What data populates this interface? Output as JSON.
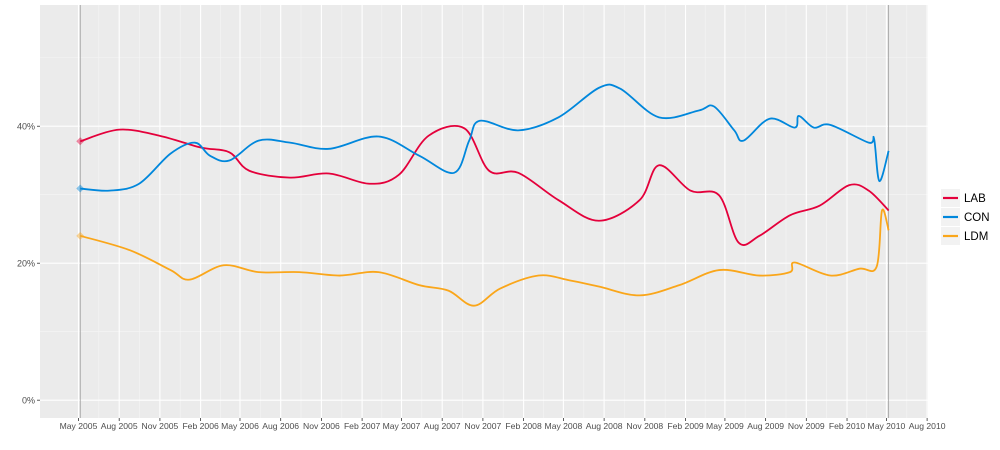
{
  "chart_data": {
    "type": "line",
    "title": "",
    "xlabel": "",
    "ylabel": "",
    "xlim": [
      "2005-02-03",
      "2010-08-03"
    ],
    "ylim": [
      -2.6,
      57.7
    ],
    "grid": true,
    "legend_position": "right",
    "x_ticks": [
      "May 2005",
      "Aug 2005",
      "Nov 2005",
      "Feb 2006",
      "May 2006",
      "Aug 2006",
      "Nov 2006",
      "Feb 2007",
      "May 2007",
      "Aug 2007",
      "Nov 2007",
      "Feb 2008",
      "May 2008",
      "Aug 2008",
      "Nov 2008",
      "Feb 2009",
      "May 2009",
      "Aug 2009",
      "Nov 2009",
      "Feb 2010",
      "May 2010",
      "Aug 2010"
    ],
    "x_tick_dates": [
      "2005-05-01",
      "2005-08-01",
      "2005-11-01",
      "2006-02-01",
      "2006-05-01",
      "2006-08-01",
      "2006-11-01",
      "2007-02-01",
      "2007-05-01",
      "2007-08-01",
      "2007-11-01",
      "2008-02-01",
      "2008-05-01",
      "2008-08-01",
      "2008-11-01",
      "2009-02-01",
      "2009-05-01",
      "2009-08-01",
      "2009-11-01",
      "2010-02-01",
      "2010-05-01",
      "2010-08-01"
    ],
    "y_ticks": [
      0,
      20,
      40
    ],
    "y_tick_labels": [
      "0%",
      "20%",
      "40%"
    ],
    "reference_lines": [
      "2005-05-05",
      "2010-05-06"
    ],
    "series": [
      {
        "name": "LAB",
        "color": "#E4003B",
        "points": [
          [
            "2005-05-05",
            37.8
          ],
          [
            "2005-08-01",
            39.5
          ],
          [
            "2005-11-01",
            38.6
          ],
          [
            "2006-02-01",
            36.9
          ],
          [
            "2006-04-07",
            36.2
          ],
          [
            "2006-05-22",
            33.5
          ],
          [
            "2006-08-22",
            32.5
          ],
          [
            "2006-11-18",
            33.1
          ],
          [
            "2007-02-18",
            31.6
          ],
          [
            "2007-04-25",
            32.9
          ],
          [
            "2007-07-01",
            38.6
          ],
          [
            "2007-09-20",
            39.7
          ],
          [
            "2007-11-15",
            33.5
          ],
          [
            "2008-01-20",
            33.2
          ],
          [
            "2008-04-20",
            29.2
          ],
          [
            "2008-07-20",
            26.2
          ],
          [
            "2008-10-20",
            29.2
          ],
          [
            "2008-12-03",
            34.3
          ],
          [
            "2009-02-12",
            30.6
          ],
          [
            "2009-04-18",
            29.9
          ],
          [
            "2009-06-01",
            23.0
          ],
          [
            "2009-07-18",
            24.0
          ],
          [
            "2009-09-25",
            27.0
          ],
          [
            "2009-12-01",
            28.4
          ],
          [
            "2010-02-06",
            31.4
          ],
          [
            "2010-03-22",
            30.6
          ],
          [
            "2010-05-06",
            27.7
          ]
        ]
      },
      {
        "name": "CON",
        "color": "#0087DC",
        "points": [
          [
            "2005-05-05",
            30.9
          ],
          [
            "2005-07-10",
            30.6
          ],
          [
            "2005-09-15",
            31.6
          ],
          [
            "2005-11-25",
            36.0
          ],
          [
            "2006-01-19",
            37.6
          ],
          [
            "2006-02-22",
            35.7
          ],
          [
            "2006-04-07",
            35.0
          ],
          [
            "2006-06-12",
            37.9
          ],
          [
            "2006-08-22",
            37.6
          ],
          [
            "2006-11-18",
            36.7
          ],
          [
            "2007-03-10",
            38.5
          ],
          [
            "2007-06-10",
            35.7
          ],
          [
            "2007-08-28",
            33.2
          ],
          [
            "2007-10-01",
            37.9
          ],
          [
            "2007-10-25",
            40.8
          ],
          [
            "2008-01-20",
            39.4
          ],
          [
            "2008-04-20",
            41.3
          ],
          [
            "2008-07-20",
            45.6
          ],
          [
            "2008-09-06",
            45.5
          ],
          [
            "2008-12-03",
            41.3
          ],
          [
            "2009-03-03",
            42.3
          ],
          [
            "2009-04-06",
            42.9
          ],
          [
            "2009-05-22",
            39.4
          ],
          [
            "2009-06-12",
            37.9
          ],
          [
            "2009-08-10",
            41.1
          ],
          [
            "2009-10-06",
            39.8
          ],
          [
            "2009-10-15",
            41.5
          ],
          [
            "2009-11-18",
            39.8
          ],
          [
            "2009-12-25",
            40.2
          ],
          [
            "2010-03-22",
            37.6
          ],
          [
            "2010-04-03",
            38.2
          ],
          [
            "2010-04-15",
            32.0
          ],
          [
            "2010-05-06",
            36.4
          ]
        ]
      },
      {
        "name": "LDM",
        "color": "#FAA61A",
        "points": [
          [
            "2005-05-05",
            24.0
          ],
          [
            "2005-08-25",
            21.9
          ],
          [
            "2005-11-25",
            19.0
          ],
          [
            "2006-01-07",
            17.6
          ],
          [
            "2006-03-25",
            19.7
          ],
          [
            "2006-06-12",
            18.7
          ],
          [
            "2006-09-12",
            18.7
          ],
          [
            "2006-12-12",
            18.2
          ],
          [
            "2007-03-10",
            18.7
          ],
          [
            "2007-06-10",
            16.8
          ],
          [
            "2007-08-15",
            16.0
          ],
          [
            "2007-10-12",
            13.8
          ],
          [
            "2007-12-10",
            16.3
          ],
          [
            "2008-03-06",
            18.2
          ],
          [
            "2008-05-15",
            17.5
          ],
          [
            "2008-07-20",
            16.6
          ],
          [
            "2008-10-20",
            15.3
          ],
          [
            "2009-01-18",
            16.8
          ],
          [
            "2009-04-18",
            19.0
          ],
          [
            "2009-07-18",
            18.2
          ],
          [
            "2009-09-25",
            18.7
          ],
          [
            "2009-10-06",
            20.1
          ],
          [
            "2009-12-25",
            18.2
          ],
          [
            "2010-03-01",
            19.2
          ],
          [
            "2010-04-09",
            19.5
          ],
          [
            "2010-04-21",
            27.7
          ],
          [
            "2010-05-06",
            24.8
          ]
        ]
      }
    ]
  }
}
